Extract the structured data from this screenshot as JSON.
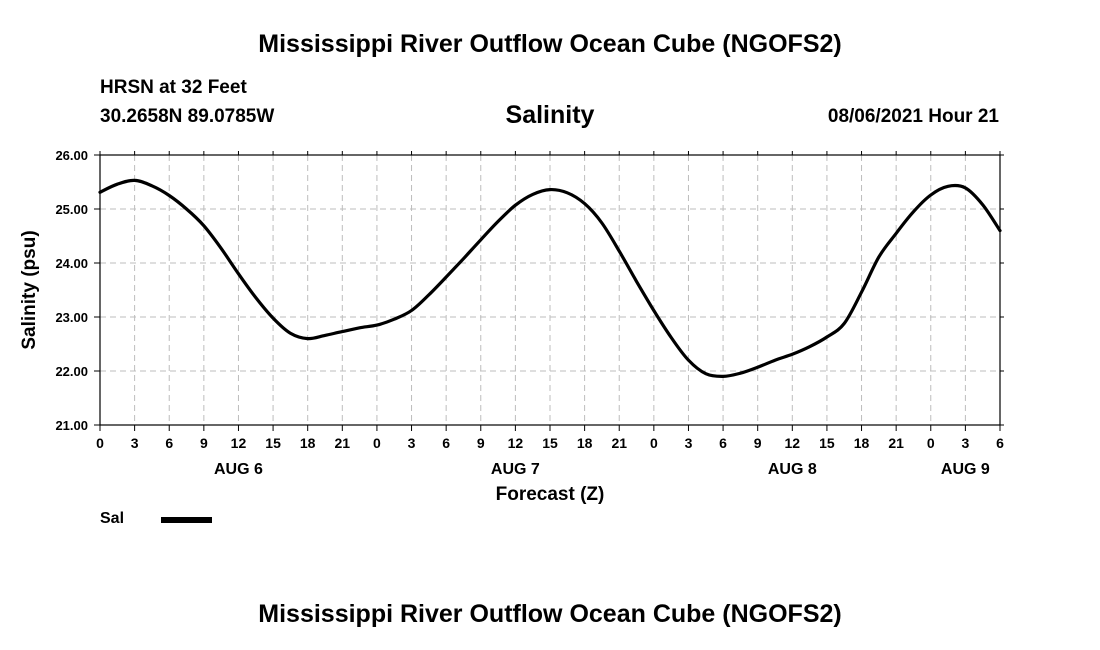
{
  "header": {
    "title": "Mississippi River Outflow Ocean Cube (NGOFS2)",
    "station": "HRSN at 32 Feet",
    "coordinates": "30.2658N  89.0785W",
    "datetime": "08/06/2021 Hour 21"
  },
  "footer": {
    "title": "Mississippi River Outflow Ocean Cube (NGOFS2)"
  },
  "chart_data": {
    "type": "line",
    "title": "Salinity",
    "ylabel": "Salinity (psu)",
    "xlabel": "Forecast (Z)",
    "ylim": [
      21,
      26
    ],
    "yticks": [
      "21.00",
      "22.00",
      "23.00",
      "24.00",
      "25.00",
      "26.00"
    ],
    "xlim_hours": [
      0,
      78
    ],
    "xtick_step_hours": 3,
    "xtick_labels": [
      "0",
      "3",
      "6",
      "9",
      "12",
      "15",
      "18",
      "21",
      "0",
      "3",
      "6",
      "9",
      "12",
      "15",
      "18",
      "21",
      "0",
      "3",
      "6",
      "9",
      "12",
      "15",
      "18",
      "21",
      "0",
      "3",
      "6"
    ],
    "day_labels": [
      {
        "label": "AUG 6",
        "hour": 12
      },
      {
        "label": "AUG 7",
        "hour": 36
      },
      {
        "label": "AUG 8",
        "hour": 60
      },
      {
        "label": "AUG 9",
        "hour": 75
      }
    ],
    "grid": true,
    "legend": {
      "position": "bottom-left"
    },
    "series": [
      {
        "name": "Sal",
        "color": "#000000",
        "x_hours": [
          0,
          1.5,
          3,
          4.5,
          6,
          7.5,
          9,
          10.5,
          12,
          13.5,
          15,
          16.5,
          18,
          19.5,
          21,
          22.5,
          24,
          25.5,
          27,
          28.5,
          30,
          31.5,
          33,
          34.5,
          36,
          37.5,
          39,
          40.5,
          42,
          43.5,
          45,
          46.5,
          48,
          49.5,
          51,
          52.5,
          54,
          55.5,
          57,
          58.5,
          60,
          61.5,
          63,
          64.5,
          66,
          67.5,
          69,
          70.5,
          72,
          73.5,
          75,
          76.5,
          78
        ],
        "values": [
          25.31,
          25.46,
          25.53,
          25.43,
          25.25,
          25.0,
          24.69,
          24.27,
          23.8,
          23.36,
          22.98,
          22.7,
          22.6,
          22.66,
          22.73,
          22.8,
          22.85,
          22.96,
          23.12,
          23.41,
          23.74,
          24.08,
          24.43,
          24.77,
          25.07,
          25.27,
          25.36,
          25.3,
          25.1,
          24.74,
          24.22,
          23.66,
          23.12,
          22.62,
          22.2,
          21.95,
          21.9,
          21.96,
          22.07,
          22.2,
          22.31,
          22.45,
          22.63,
          22.88,
          23.46,
          24.11,
          24.55,
          24.95,
          25.26,
          25.42,
          25.39,
          25.08,
          24.6
        ]
      }
    ]
  }
}
